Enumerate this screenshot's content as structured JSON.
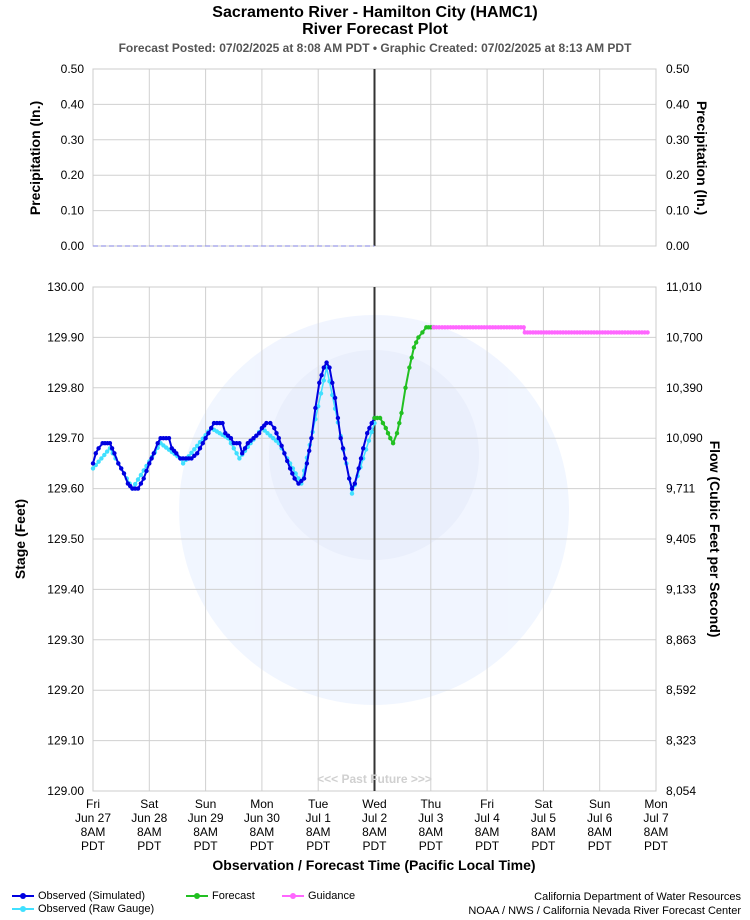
{
  "header": {
    "title": "Sacramento River - Hamilton City (HAMC1)",
    "subtitle": "River Forecast Plot",
    "posted_line": "Forecast Posted: 07/02/2025 at 8:08 AM PDT  •  Graphic Created: 07/02/2025 at 8:13 AM PDT"
  },
  "chart_data": [
    {
      "type": "line",
      "name": "precipitation",
      "ylabel_left": "Precipitation (In.)",
      "ylabel_right": "Precipitation (In.)",
      "ylim": [
        0,
        0.5
      ],
      "yticks": [
        "0.50",
        "0.40",
        "0.30",
        "0.20",
        "0.10",
        "0.00"
      ],
      "grid": true,
      "observed_value": 0.0
    },
    {
      "type": "line",
      "ylabel_left": "Stage (Feet)",
      "ylabel_right": "Flow (Cubic Feet per Second)",
      "xlabel": "Observation / Forecast Time (Pacific Local Time)",
      "ylim": [
        129.0,
        130.0
      ],
      "yticks_left": [
        "130.00",
        "129.90",
        "129.80",
        "129.70",
        "129.60",
        "129.50",
        "129.40",
        "129.30",
        "129.20",
        "129.10",
        "129.00"
      ],
      "yticks_right": [
        "11,010",
        "10,700",
        "10,390",
        "10,090",
        "9,711",
        "9,405",
        "9,133",
        "8,863",
        "8,592",
        "8,323",
        "8,054"
      ],
      "grid": true,
      "x_ticks": [
        [
          "Fri",
          "Jun 27",
          "8AM",
          "PDT"
        ],
        [
          "Sat",
          "Jun 28",
          "8AM",
          "PDT"
        ],
        [
          "Sun",
          "Jun 29",
          "8AM",
          "PDT"
        ],
        [
          "Mon",
          "Jun 30",
          "8AM",
          "PDT"
        ],
        [
          "Tue",
          "Jul 1",
          "8AM",
          "PDT"
        ],
        [
          "Wed",
          "Jul 2",
          "8AM",
          "PDT"
        ],
        [
          "Thu",
          "Jul 3",
          "8AM",
          "PDT"
        ],
        [
          "Fri",
          "Jul 4",
          "8AM",
          "PDT"
        ],
        [
          "Sat",
          "Jul 5",
          "8AM",
          "PDT"
        ],
        [
          "Sun",
          "Jul 6",
          "8AM",
          "PDT"
        ],
        [
          "Mon",
          "Jul 7",
          "8AM",
          "PDT"
        ]
      ],
      "now_day": 5,
      "past_future_label": "<<< Past     Future >>>",
      "series": [
        {
          "name": "Observed (Simulated)",
          "color": "#0000e0",
          "points": [
            [
              0.0,
              129.65
            ],
            [
              0.05,
              129.67
            ],
            [
              0.1,
              129.68
            ],
            [
              0.17,
              129.69
            ],
            [
              0.3,
              129.69
            ],
            [
              0.38,
              129.67
            ],
            [
              0.45,
              129.65
            ],
            [
              0.55,
              129.63
            ],
            [
              0.62,
              129.61
            ],
            [
              0.7,
              129.6
            ],
            [
              0.8,
              129.6
            ],
            [
              0.9,
              129.62
            ],
            [
              1.0,
              129.65
            ],
            [
              1.08,
              129.67
            ],
            [
              1.15,
              129.69
            ],
            [
              1.2,
              129.7
            ],
            [
              1.35,
              129.7
            ],
            [
              1.4,
              129.68
            ],
            [
              1.48,
              129.67
            ],
            [
              1.55,
              129.66
            ],
            [
              1.7,
              129.66
            ],
            [
              1.75,
              129.66
            ],
            [
              1.85,
              129.67
            ],
            [
              1.95,
              129.69
            ],
            [
              2.05,
              129.71
            ],
            [
              2.1,
              129.72
            ],
            [
              2.15,
              129.73
            ],
            [
              2.3,
              129.73
            ],
            [
              2.35,
              129.71
            ],
            [
              2.45,
              129.7
            ],
            [
              2.5,
              129.69
            ],
            [
              2.6,
              129.69
            ],
            [
              2.65,
              129.67
            ],
            [
              2.7,
              129.68
            ],
            [
              2.75,
              129.69
            ],
            [
              2.85,
              129.7
            ],
            [
              2.95,
              129.71
            ],
            [
              3.0,
              129.72
            ],
            [
              3.08,
              129.73
            ],
            [
              3.15,
              129.73
            ],
            [
              3.22,
              129.72
            ],
            [
              3.3,
              129.7
            ],
            [
              3.4,
              129.67
            ],
            [
              3.5,
              129.64
            ],
            [
              3.58,
              129.62
            ],
            [
              3.65,
              129.61
            ],
            [
              3.75,
              129.62
            ],
            [
              3.8,
              129.65
            ],
            [
              3.88,
              129.7
            ],
            [
              3.95,
              129.76
            ],
            [
              4.02,
              129.81
            ],
            [
              4.1,
              129.84
            ],
            [
              4.15,
              129.85
            ],
            [
              4.2,
              129.84
            ],
            [
              4.3,
              129.78
            ],
            [
              4.4,
              129.7
            ],
            [
              4.48,
              129.66
            ],
            [
              4.55,
              129.62
            ],
            [
              4.6,
              129.6
            ],
            [
              4.65,
              129.61
            ],
            [
              4.72,
              129.64
            ],
            [
              4.8,
              129.68
            ],
            [
              4.87,
              129.71
            ],
            [
              4.95,
              129.73
            ],
            [
              5.0,
              129.74
            ]
          ]
        },
        {
          "name": "Observed (Raw Gauge)",
          "color": "#40e0ff",
          "points": [
            [
              0.0,
              129.64
            ],
            [
              0.3,
              129.68
            ],
            [
              0.7,
              129.6
            ],
            [
              1.2,
              129.69
            ],
            [
              1.55,
              129.66
            ],
            [
              1.6,
              129.65
            ],
            [
              2.1,
              129.72
            ],
            [
              2.4,
              129.7
            ],
            [
              2.6,
              129.66
            ],
            [
              3.0,
              129.72
            ],
            [
              3.3,
              129.69
            ],
            [
              3.7,
              129.61
            ],
            [
              4.15,
              129.84
            ],
            [
              4.5,
              129.65
            ],
            [
              4.6,
              129.59
            ],
            [
              4.8,
              129.66
            ],
            [
              5.0,
              129.73
            ]
          ]
        },
        {
          "name": "Forecast",
          "color": "#22c022",
          "points": [
            [
              5.0,
              129.74
            ],
            [
              5.1,
              129.74
            ],
            [
              5.2,
              129.72
            ],
            [
              5.28,
              129.7
            ],
            [
              5.33,
              129.69
            ],
            [
              5.4,
              129.71
            ],
            [
              5.48,
              129.75
            ],
            [
              5.55,
              129.8
            ],
            [
              5.62,
              129.84
            ],
            [
              5.7,
              129.88
            ],
            [
              5.78,
              129.9
            ],
            [
              5.85,
              129.91
            ],
            [
              5.92,
              129.92
            ],
            [
              6.0,
              129.92
            ],
            [
              6.05,
              129.92
            ]
          ]
        },
        {
          "name": "Guidance",
          "color": "#ff66ff",
          "points": [
            [
              6.05,
              129.92
            ],
            [
              6.4,
              129.92
            ],
            [
              6.8,
              129.92
            ],
            [
              7.2,
              129.92
            ],
            [
              7.65,
              129.92
            ],
            [
              7.67,
              129.91
            ],
            [
              8.2,
              129.91
            ],
            [
              8.8,
              129.91
            ],
            [
              9.3,
              129.91
            ],
            [
              9.85,
              129.91
            ]
          ]
        }
      ]
    }
  ],
  "legend": {
    "items": [
      {
        "label": "Observed (Simulated)",
        "color": "#0000e0"
      },
      {
        "label": "Observed (Raw Gauge)",
        "color": "#40e0ff"
      },
      {
        "label": "Forecast",
        "color": "#22c022"
      },
      {
        "label": "Guidance",
        "color": "#ff66ff"
      }
    ]
  },
  "credits": {
    "line1": "California Department of Water Resources",
    "line2": "NOAA / NWS / California Nevada River Forecast Center"
  }
}
